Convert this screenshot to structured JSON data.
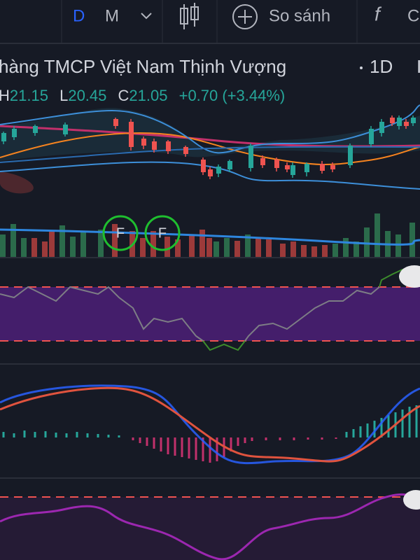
{
  "toolbar": {
    "interval_day": "D",
    "interval_month": "M",
    "compare": "So sánh",
    "cut_off": "C"
  },
  "legend": {
    "title": "hàng TMCP Việt Nam Thịnh Vượng",
    "interval": "1D",
    "high_label": "H",
    "high": "21.15",
    "low_label": "L",
    "low": "20.45",
    "close_label": "C",
    "close": "21.05",
    "change": "+0.70 (+3.44%)"
  },
  "markers": [
    "F",
    "F"
  ]
}
